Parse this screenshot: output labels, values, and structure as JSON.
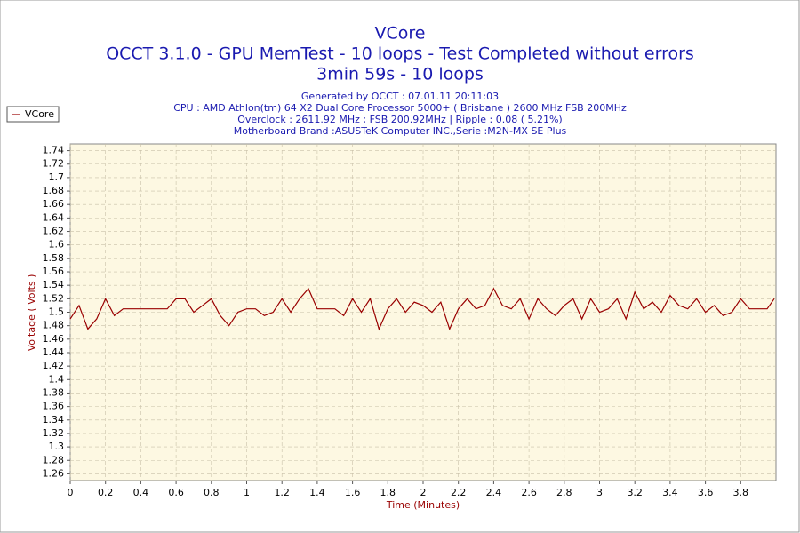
{
  "chart_data": {
    "type": "line",
    "title": "VCore",
    "subtitle": [
      "OCCT 3.1.0 - GPU MemTest - 10 loops - Test Completed without errors",
      "3min 59s - 10 loops"
    ],
    "annotations": [
      "Generated by OCCT : 07.01.11 20:11:03",
      "CPU : AMD Athlon(tm) 64 X2 Dual Core Processor 5000+ ( Brisbane ) 2600 MHz FSB 200MHz",
      "Overclock : 2611.92 MHz ; FSB 200.92MHz | Ripple : 0.08 ( 5.21%)",
      "Motherboard Brand :ASUSTeK Computer INC.,Serie :M2N-MX SE Plus"
    ],
    "x_label": "Time (Minutes)",
    "y_label": "Voltage ( Volts )",
    "legend": "top-left",
    "grid": true,
    "x": [
      0,
      0.05,
      0.1,
      0.15,
      0.2,
      0.25,
      0.3,
      0.35,
      0.4,
      0.45,
      0.5,
      0.55,
      0.6,
      0.65,
      0.7,
      0.75,
      0.8,
      0.85,
      0.9,
      0.95,
      1,
      1.05,
      1.1,
      1.15,
      1.2,
      1.25,
      1.3,
      1.35,
      1.4,
      1.45,
      1.5,
      1.55,
      1.6,
      1.65,
      1.7,
      1.75,
      1.8,
      1.85,
      1.9,
      1.95,
      2,
      2.05,
      2.1,
      2.15,
      2.2,
      2.25,
      2.3,
      2.35,
      2.4,
      2.45,
      2.5,
      2.55,
      2.6,
      2.65,
      2.7,
      2.75,
      2.8,
      2.85,
      2.9,
      2.95,
      3,
      3.05,
      3.1,
      3.15,
      3.2,
      3.25,
      3.3,
      3.35,
      3.4,
      3.45,
      3.5,
      3.55,
      3.6,
      3.65,
      3.7,
      3.75,
      3.8,
      3.85,
      3.9,
      3.95,
      3.99
    ],
    "series": [
      {
        "name": "VCore",
        "color": "#990000",
        "values": [
          1.49,
          1.51,
          1.475,
          1.49,
          1.52,
          1.495,
          1.505,
          1.505,
          1.505,
          1.505,
          1.505,
          1.505,
          1.52,
          1.52,
          1.5,
          1.51,
          1.52,
          1.495,
          1.48,
          1.5,
          1.505,
          1.505,
          1.495,
          1.5,
          1.52,
          1.5,
          1.52,
          1.535,
          1.505,
          1.505,
          1.505,
          1.495,
          1.52,
          1.5,
          1.52,
          1.475,
          1.505,
          1.52,
          1.5,
          1.515,
          1.51,
          1.5,
          1.515,
          1.475,
          1.505,
          1.52,
          1.505,
          1.51,
          1.535,
          1.51,
          1.505,
          1.52,
          1.49,
          1.52,
          1.505,
          1.495,
          1.51,
          1.52,
          1.49,
          1.52,
          1.5,
          1.505,
          1.52,
          1.49,
          1.53,
          1.505,
          1.515,
          1.5,
          1.525,
          1.51,
          1.505,
          1.52,
          1.5,
          1.51,
          1.495,
          1.5,
          1.52,
          1.505,
          1.505,
          1.505,
          1.52
        ]
      }
    ],
    "xlim": [
      0,
      4
    ],
    "xticks": [
      0,
      0.2,
      0.4,
      0.6,
      0.8,
      1,
      1.2,
      1.4,
      1.6,
      1.8,
      2,
      2.2,
      2.4,
      2.6,
      2.8,
      3,
      3.2,
      3.4,
      3.6,
      3.8
    ],
    "ylim": [
      1.25,
      1.75
    ],
    "yticks": [
      1.26,
      1.28,
      1.3,
      1.32,
      1.34,
      1.36,
      1.38,
      1.4,
      1.42,
      1.44,
      1.46,
      1.48,
      1.5,
      1.52,
      1.54,
      1.56,
      1.58,
      1.6,
      1.62,
      1.64,
      1.66,
      1.68,
      1.7,
      1.72,
      1.74
    ]
  }
}
